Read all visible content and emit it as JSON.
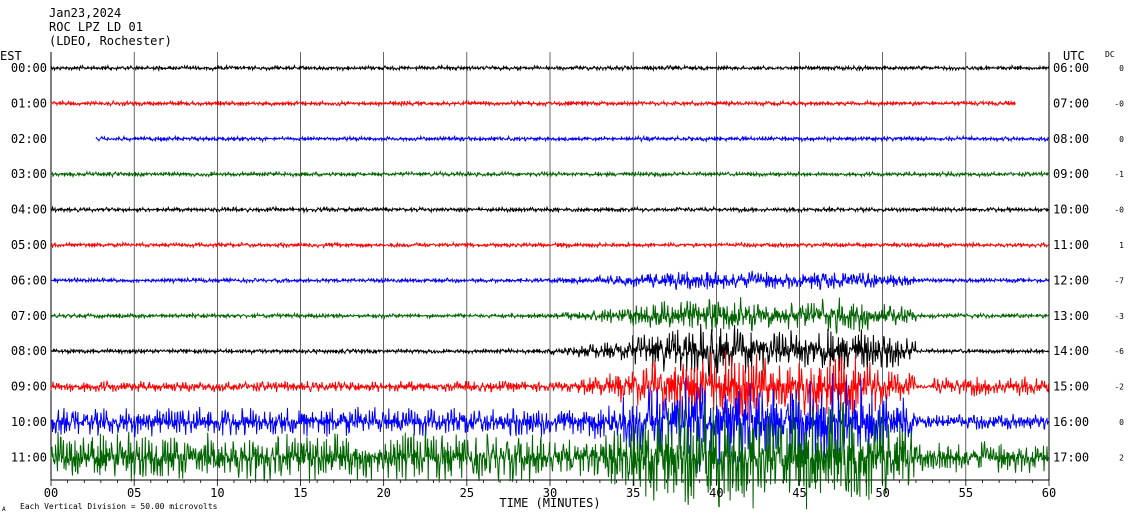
{
  "header": {
    "date": "Jan23,2024",
    "station": "ROC LPZ LD 01",
    "network": "(LDEO, Rochester)",
    "left_tz": "EST",
    "right_tz": "UTC",
    "dc_label": "DC"
  },
  "footer": {
    "division_note": "Each Vertical Division =   50.00 microvolts",
    "corner_mark": "A"
  },
  "chart_data": {
    "type": "line",
    "title": "",
    "xlabel": "TIME (MINUTES)",
    "xlim": [
      0,
      60
    ],
    "x_ticks": [
      0,
      5,
      10,
      15,
      20,
      25,
      30,
      35,
      40,
      45,
      50,
      55,
      60
    ],
    "x_tick_labels": [
      "00",
      "05",
      "10",
      "15",
      "20",
      "25",
      "30",
      "35",
      "40",
      "45",
      "50",
      "55",
      "60"
    ],
    "grid": "vertical lines every 5 minutes",
    "colors": [
      "#000000",
      "#ff0000",
      "#0000ff",
      "#006400"
    ],
    "rows": [
      {
        "est": "00:00",
        "utc": "06:00",
        "dc": "0",
        "color": "#000000",
        "start_min": 0,
        "end_min": 60
      },
      {
        "est": "01:00",
        "utc": "07:00",
        "dc": "-0",
        "color": "#ff0000",
        "start_min": 0,
        "end_min": 58
      },
      {
        "est": "02:00",
        "utc": "08:00",
        "dc": "0",
        "color": "#0000ff",
        "start_min": 2.7,
        "end_min": 60
      },
      {
        "est": "03:00",
        "utc": "09:00",
        "dc": "-1",
        "color": "#006400",
        "start_min": 0,
        "end_min": 60
      },
      {
        "est": "04:00",
        "utc": "10:00",
        "dc": "-0",
        "color": "#000000",
        "start_min": 0,
        "end_min": 60
      },
      {
        "est": "05:00",
        "utc": "11:00",
        "dc": "1",
        "color": "#ff0000",
        "start_min": 0,
        "end_min": 60
      },
      {
        "est": "06:00",
        "utc": "12:00",
        "dc": "-7",
        "color": "#0000ff",
        "start_min": 0,
        "end_min": 60
      },
      {
        "est": "07:00",
        "utc": "13:00",
        "dc": "-3",
        "color": "#006400",
        "start_min": 0,
        "end_min": 60
      },
      {
        "est": "08:00",
        "utc": "14:00",
        "dc": "-6",
        "color": "#000000",
        "start_min": 0,
        "end_min": 60
      },
      {
        "est": "09:00",
        "utc": "15:00",
        "dc": "-2",
        "color": "#ff0000",
        "start_min": 0,
        "end_min": 60
      },
      {
        "est": "10:00",
        "utc": "16:00",
        "dc": "0",
        "color": "#0000ff",
        "start_min": 0,
        "end_min": 60
      },
      {
        "est": "11:00",
        "utc": "17:00",
        "dc": "2",
        "color": "#006400",
        "start_min": 0,
        "end_min": 60
      }
    ]
  }
}
